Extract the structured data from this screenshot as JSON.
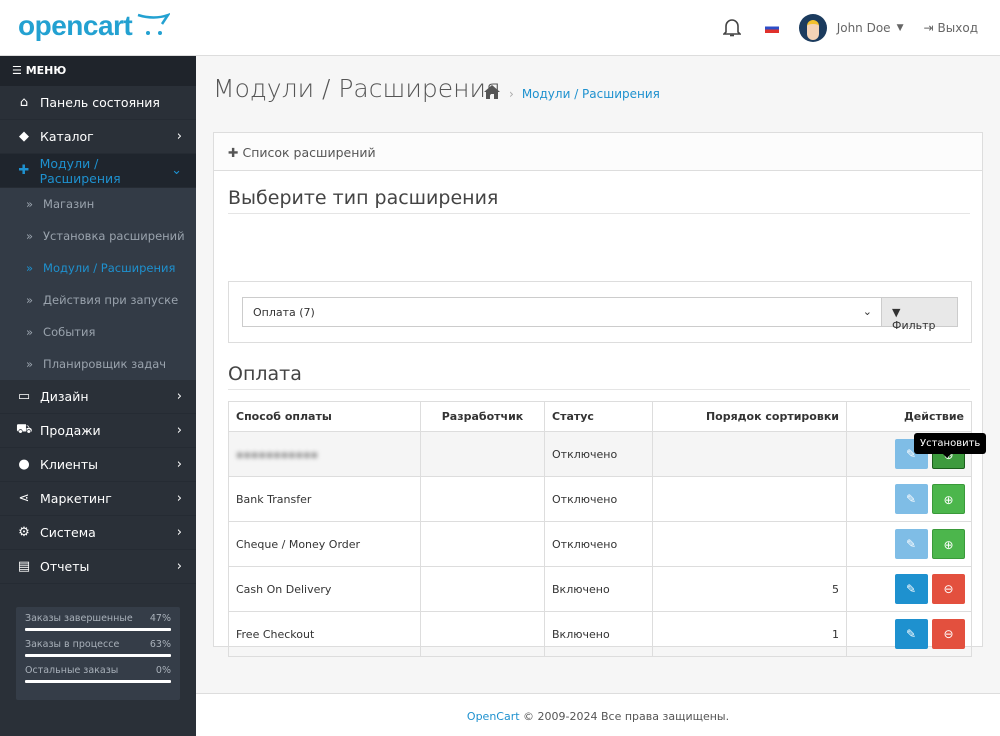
{
  "header": {
    "logo": "opencart",
    "user": "John Doe",
    "logout": "Выход",
    "icons": {
      "bell": "bell-icon",
      "flag": "ru-flag-icon",
      "logout": "sign-out-icon"
    }
  },
  "sidebar": {
    "menu_title": "☰ МЕНЮ",
    "items": [
      {
        "label": "Панель состояния",
        "icon": "home-icon",
        "glyph": "⌂"
      },
      {
        "label": "Каталог",
        "icon": "tag-icon",
        "glyph": "◆"
      },
      {
        "label": "Модули / Расширения",
        "icon": "puzzle-icon",
        "glyph": "✚"
      },
      {
        "label": "Дизайн",
        "icon": "monitor-icon",
        "glyph": "▭"
      },
      {
        "label": "Продажи",
        "icon": "cart-icon",
        "glyph": "⛟"
      },
      {
        "label": "Клиенты",
        "icon": "user-icon",
        "glyph": "●"
      },
      {
        "label": "Маркетинг",
        "icon": "share-icon",
        "glyph": "⋖"
      },
      {
        "label": "Система",
        "icon": "cog-icon",
        "glyph": "⚙"
      },
      {
        "label": "Отчеты",
        "icon": "bar-chart-icon",
        "glyph": "▤"
      }
    ],
    "sub_items": [
      "Магазин",
      "Установка расширений",
      "Модули / Расширения",
      "Действия при запуске",
      "События",
      "Планировщик задач"
    ],
    "stats": [
      {
        "label": "Заказы завершенные",
        "value": "47%",
        "percent": 47
      },
      {
        "label": "Заказы в процессе",
        "value": "63%",
        "percent": 63
      },
      {
        "label": "Остальные заказы",
        "value": "0%",
        "percent": 0
      }
    ]
  },
  "page": {
    "title": "Модули / Расширения",
    "breadcrumb": "Модули / Расширения",
    "panel_title": "Список расширений",
    "choose_type": "Выберите тип расширения",
    "select_value": "Оплата (7)",
    "filter_label": "Фильтр",
    "section": "Оплата",
    "columns": [
      "Способ оплаты",
      "Разработчик",
      "Статус",
      "Порядок сортировки",
      "Действие"
    ],
    "tooltip": "Установить",
    "rows": [
      {
        "name": "",
        "developer": "",
        "status": "Отключено",
        "sort": "",
        "installed": false,
        "blurred": true
      },
      {
        "name": "Bank Transfer",
        "developer": "",
        "status": "Отключено",
        "sort": "",
        "installed": false
      },
      {
        "name": "Cheque / Money Order",
        "developer": "",
        "status": "Отключено",
        "sort": "",
        "installed": false
      },
      {
        "name": "Cash On Delivery",
        "developer": "",
        "status": "Включено",
        "sort": "5",
        "installed": true
      },
      {
        "name": "Free Checkout",
        "developer": "",
        "status": "Включено",
        "sort": "1",
        "installed": true
      }
    ]
  },
  "footer": {
    "link": "OpenCart",
    "text": " © 2009-2024 Все права защищены."
  },
  "colors": {
    "accent": "#1e91cf",
    "install": "#4cb64c",
    "uninstall": "#e3503e",
    "sidebar": "#2a3038"
  }
}
